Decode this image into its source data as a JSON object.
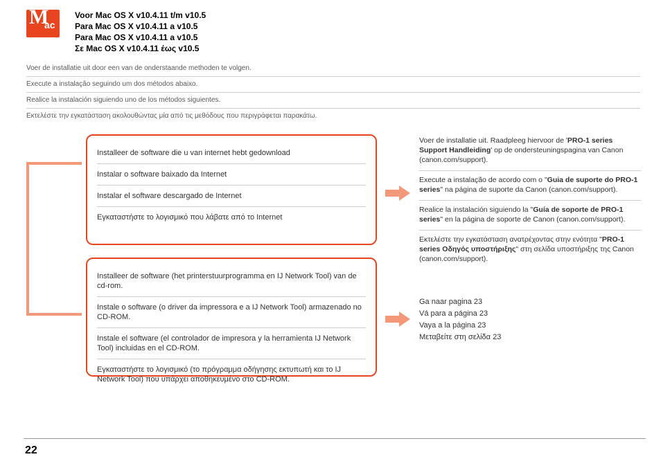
{
  "colors": {
    "mac_badge_bg": "#e84420",
    "bracket": "#f39879",
    "arrow": "#f39879",
    "box_border": "#e84420",
    "divider": "#cccccc",
    "text_body": "#333333",
    "text_intro": "#5a5a5a"
  },
  "mac_badge": {
    "m": "M",
    "ac": "ac"
  },
  "headings": {
    "nl": "Voor Mac OS X v10.4.11 t/m v10.5",
    "pt": "Para Mac OS X v10.4.11 a v10.5",
    "es": "Para Mac OS X v10.4.11 a v10.5",
    "el": "Σε Mac OS X v10.4.11 έως v10.5"
  },
  "intro": {
    "nl": "Voer de installatie uit door een van de onderstaande methoden te volgen.",
    "pt": "Execute a instalação seguindo um dos métodos abaixo.",
    "es": "Realice la instalación siguiendo uno de los métodos siguientes.",
    "el": "Εκτελέστε την εγκατάσταση ακολουθώντας μία από τις μεθόδους που περιγράφεται παρακάτω."
  },
  "box1": {
    "nl": "Installeer de software die u van internet hebt gedownload",
    "pt": "Instalar o software baixado da Internet",
    "es": "Instalar el software descargado de Internet",
    "el": "Εγκαταστήστε το λογισμικό που λάβατε από το Internet"
  },
  "box2": {
    "nl": "Installeer de software (het printerstuurprogramma en IJ Network Tool) van de cd-rom.",
    "pt": "Instale o software (o driver da impressora e a IJ Network Tool) armazenado no CD-ROM.",
    "es": "Instale el software (el controlador de impresora y la herramienta IJ Network Tool) incluidas en el CD-ROM.",
    "el": "Εγκαταστήστε το λογισμικό (το πρόγραμμα οδήγησης εκτυπωτή και το IJ Network Tool) που υπάρχει αποθηκευμένο στο CD-ROM."
  },
  "right_top": {
    "nl_pre": "Voer de installatie uit. Raadpleeg hiervoor de '",
    "nl_bold": "PRO-1 series Support Handleiding",
    "nl_post": "' op de ondersteuningspagina van Canon (canon.com/support).",
    "pt_pre": "Execute a instalação de acordo com o \"",
    "pt_bold": "Guia de suporte do PRO-1 series",
    "pt_post": "\" na página de suporte da Canon (canon.com/support).",
    "es_pre": "Realice la instalación siguiendo la \"",
    "es_bold": "Guía de soporte de PRO-1 series",
    "es_post": "\" en la página de soporte de Canon (canon.com/support).",
    "el_pre": "Εκτελέστε την εγκατάσταση ανατρέχοντας στην ενότητα \"",
    "el_bold": "PRO-1 series Οδηγός υποστήριξης",
    "el_post": "\" στη σελίδα υποστήριξης της Canon (canon.com/support)."
  },
  "right_bot": {
    "nl": "Ga naar pagina 23",
    "pt": "Vá para a página 23",
    "es": "Vaya a la página 23",
    "el": "Μεταβείτε στη σελίδα 23"
  },
  "page_number": "22"
}
